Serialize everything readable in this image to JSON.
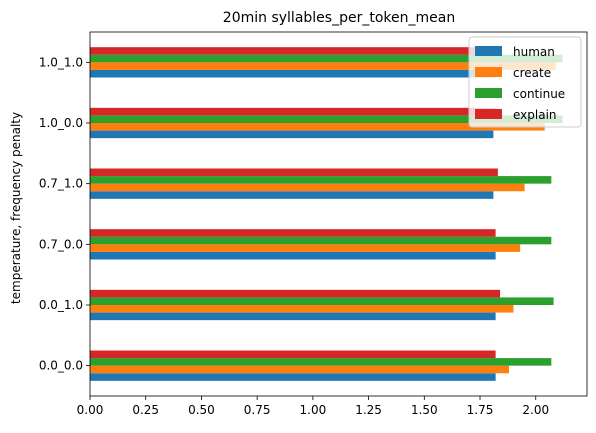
{
  "chart_data": {
    "type": "bar",
    "orientation": "horizontal",
    "title": "20min syllables_per_token_mean",
    "xlabel": "",
    "ylabel": "temperature, frequency penalty",
    "categories": [
      "0.0_0.0",
      "0.0_1.0",
      "0.7_0.0",
      "0.7_1.0",
      "1.0_0.0",
      "1.0_1.0"
    ],
    "xlim": [
      0,
      2.23
    ],
    "xticks": [
      "0.00",
      "0.25",
      "0.50",
      "0.75",
      "1.00",
      "1.25",
      "1.50",
      "1.75",
      "2.00"
    ],
    "xtick_values": [
      0,
      0.25,
      0.5,
      0.75,
      1.0,
      1.25,
      1.5,
      1.75,
      2.0
    ],
    "grid": false,
    "legend_position": "top-right",
    "series": [
      {
        "name": "human",
        "color": "#1f77b4",
        "values": [
          1.82,
          1.82,
          1.82,
          1.81,
          1.81,
          1.82
        ]
      },
      {
        "name": "create",
        "color": "#ff7f0e",
        "values": [
          1.88,
          1.9,
          1.93,
          1.95,
          2.04,
          2.09
        ]
      },
      {
        "name": "continue",
        "color": "#2ca02c",
        "values": [
          2.07,
          2.08,
          2.07,
          2.07,
          2.12,
          2.12
        ]
      },
      {
        "name": "explain",
        "color": "#d62728",
        "values": [
          1.82,
          1.84,
          1.82,
          1.83,
          1.82,
          1.82
        ]
      }
    ]
  }
}
